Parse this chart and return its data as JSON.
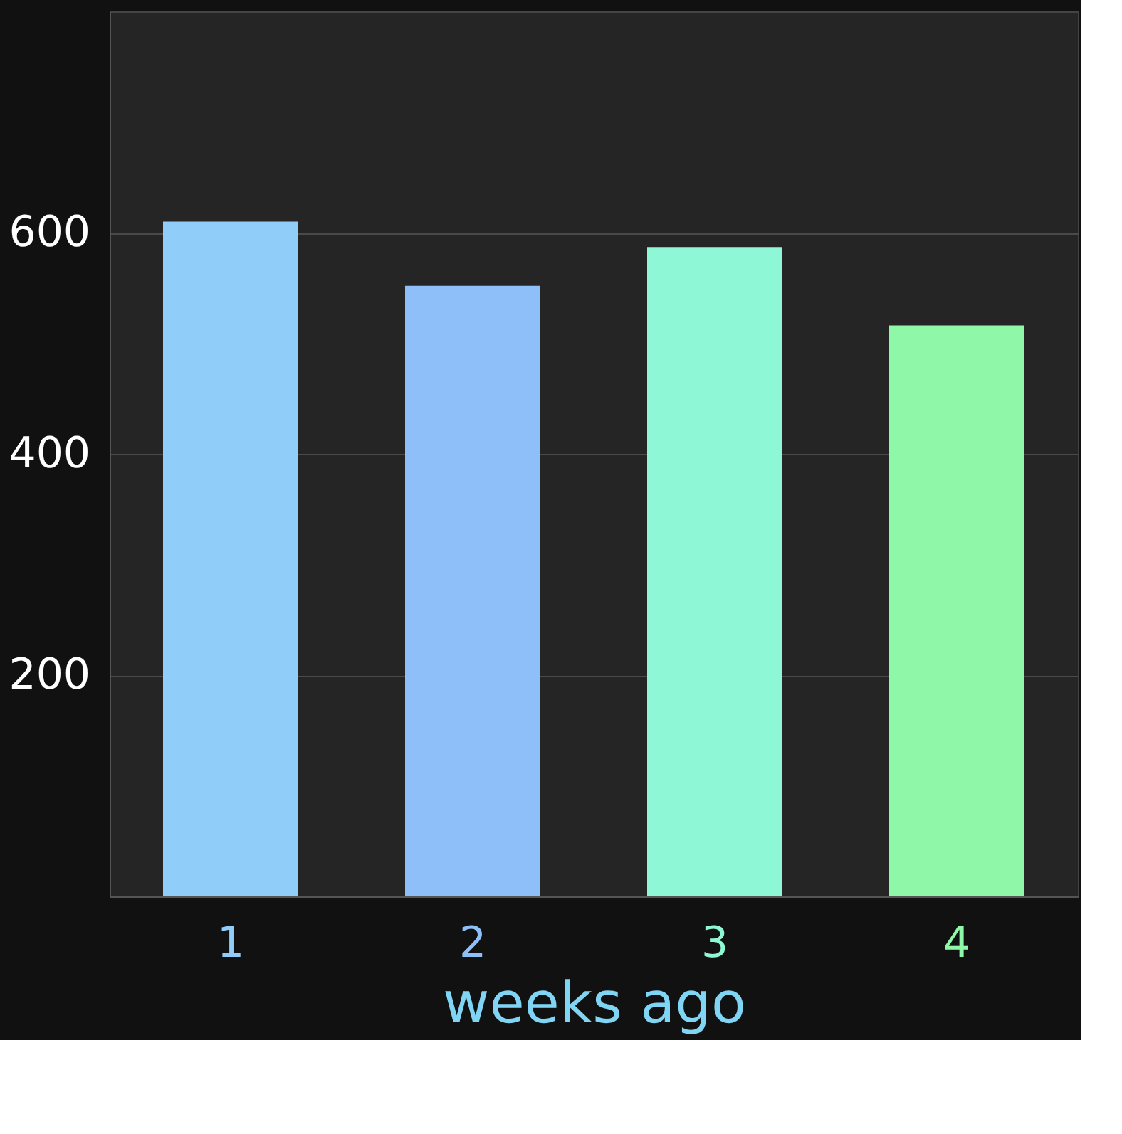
{
  "chart_data": {
    "type": "bar",
    "xlabel": "weeks ago",
    "categories": [
      "1",
      "2",
      "3",
      "4"
    ],
    "values": [
      610,
      552,
      587,
      516
    ],
    "colors": [
      "#90cdf8",
      "#8fbff8",
      "#8ef8d6",
      "#8ef8a8"
    ],
    "ylim": [
      0,
      800
    ],
    "yticks": [
      200,
      400,
      600
    ],
    "grid": "y"
  }
}
